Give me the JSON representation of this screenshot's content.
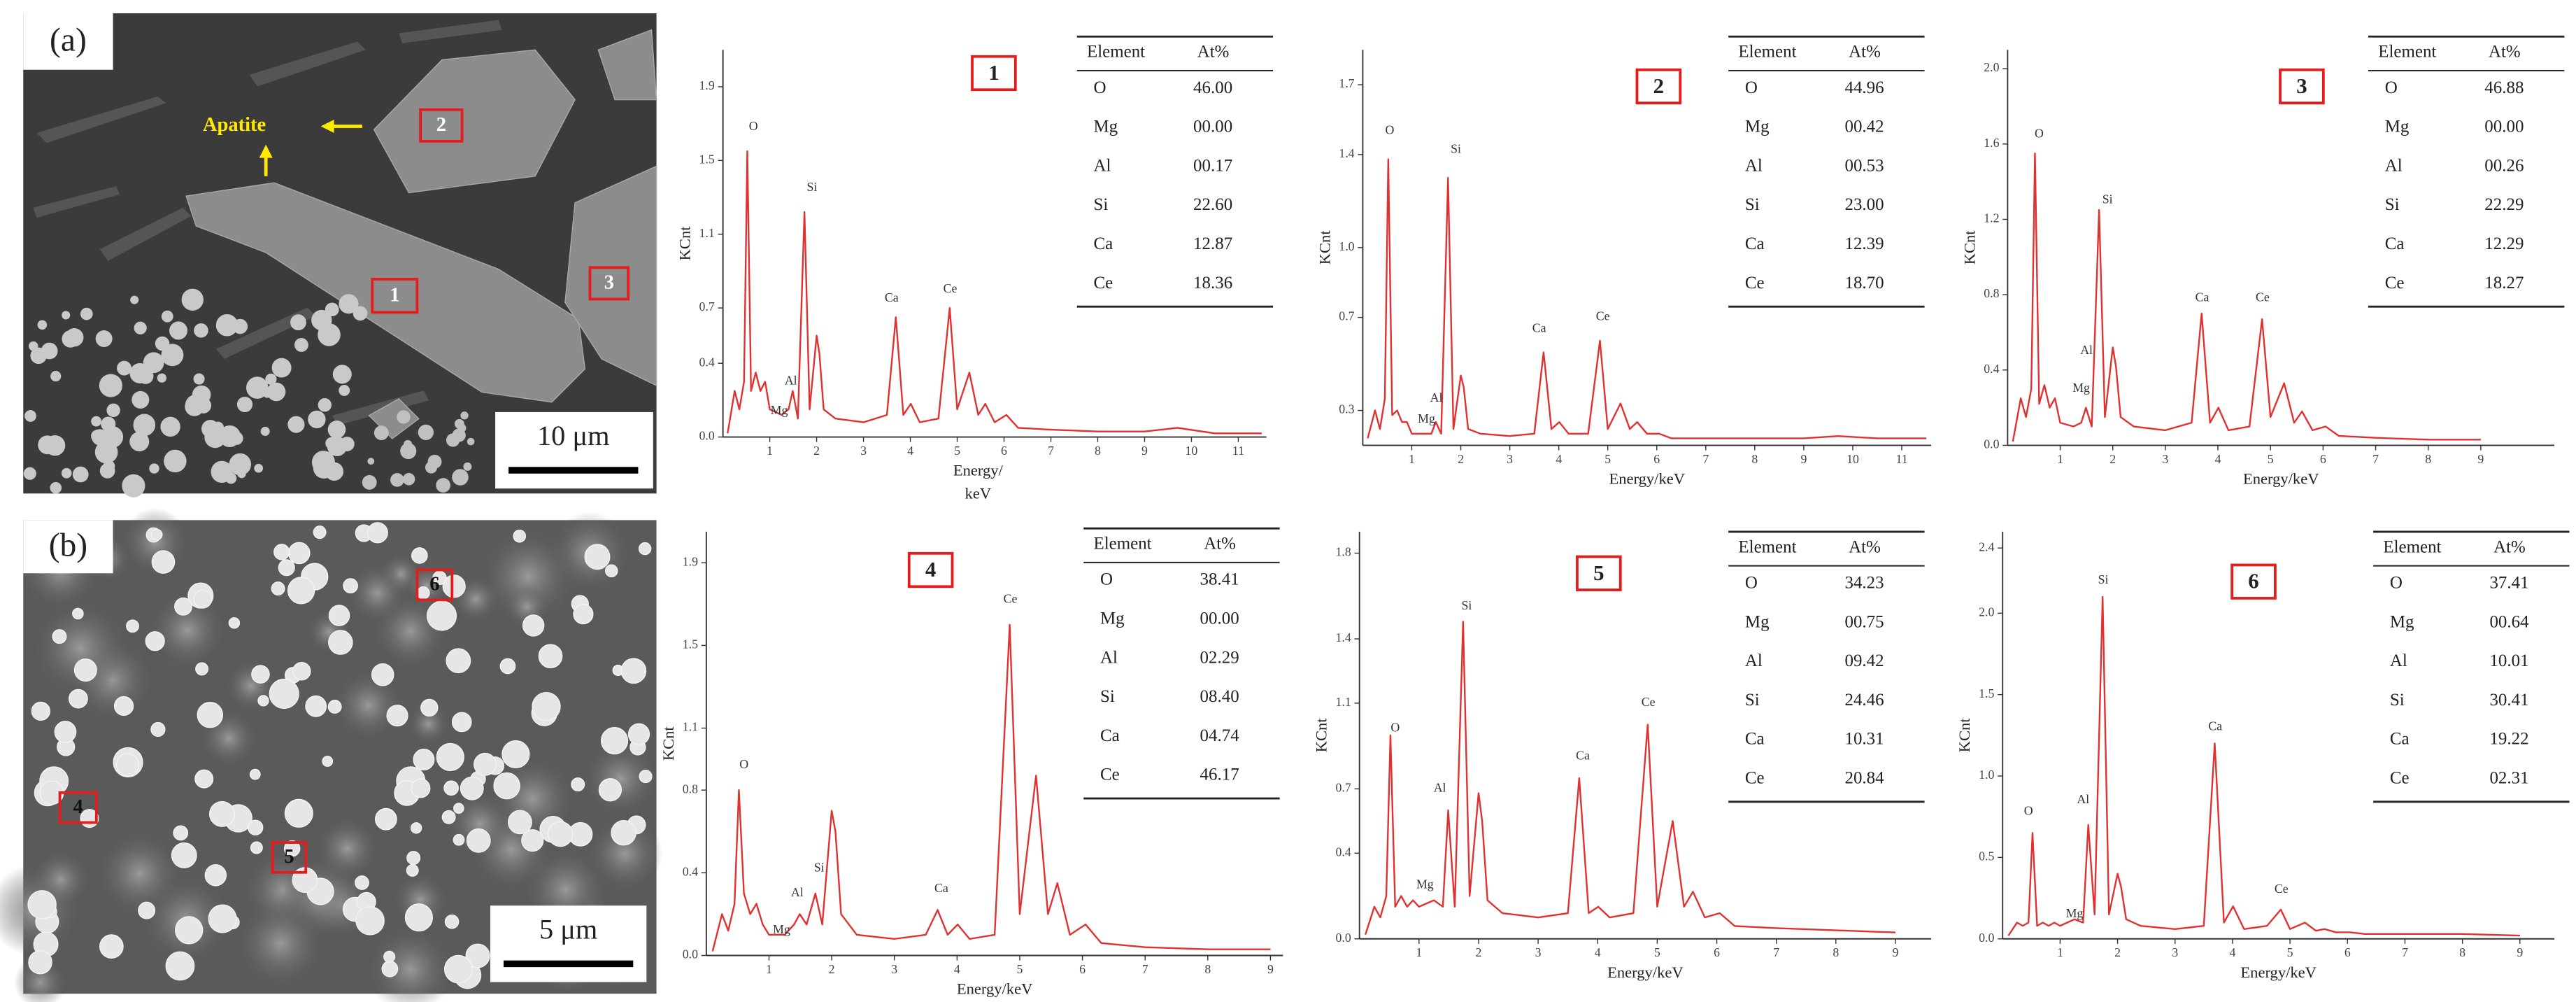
{
  "micrographs": [
    {
      "label": "(a)",
      "annotation": "Apatite",
      "scale_bar": "10 μm",
      "markers": [
        "1",
        "2",
        "3"
      ]
    },
    {
      "label": "(b)",
      "scale_bar": "5 μm",
      "markers": [
        "4",
        "5",
        "6"
      ]
    }
  ],
  "chart_data": [
    {
      "type": "line",
      "number": "1",
      "y_label": "KCnt",
      "x_label": "Energy/\nkeV",
      "color": "#e0302f",
      "xlim": [
        0,
        11.6
      ],
      "ylim": [
        0,
        2.1
      ],
      "xticks": [
        1,
        2,
        3,
        4,
        5,
        6,
        7,
        8,
        9,
        10,
        11
      ],
      "yticks": [
        {
          "value": 0,
          "label": "0.0"
        },
        0.4,
        0.7,
        1.1,
        1.5,
        1.9
      ],
      "x": [
        0.1,
        0.25,
        0.35,
        0.45,
        0.52,
        0.6,
        0.7,
        0.8,
        0.9,
        1.0,
        1.25,
        1.4,
        1.49,
        1.6,
        1.74,
        1.85,
        2.0,
        2.06,
        2.15,
        2.4,
        3.0,
        3.5,
        3.69,
        3.85,
        4.01,
        4.2,
        4.6,
        4.84,
        5.0,
        5.26,
        5.45,
        5.6,
        5.8,
        6.05,
        6.3,
        7,
        8,
        9,
        9.7,
        10.5,
        11.5
      ],
      "values": [
        0.02,
        0.25,
        0.15,
        0.3,
        1.55,
        0.25,
        0.35,
        0.25,
        0.3,
        0.15,
        0.12,
        0.15,
        0.25,
        0.1,
        1.22,
        0.15,
        0.55,
        0.45,
        0.15,
        0.1,
        0.08,
        0.12,
        0.65,
        0.12,
        0.18,
        0.08,
        0.1,
        0.7,
        0.15,
        0.35,
        0.12,
        0.18,
        0.08,
        0.12,
        0.05,
        0.04,
        0.03,
        0.03,
        0.05,
        0.02,
        0.02
      ],
      "annotations": [
        {
          "text": "O",
          "x": 0.65,
          "y": 1.68
        },
        {
          "text": "Si",
          "x": 1.9,
          "y": 1.35
        },
        {
          "text": "Al",
          "x": 1.45,
          "y": 0.3
        },
        {
          "text": "Mg",
          "x": 1.2,
          "y": 0.14
        },
        {
          "text": "Ca",
          "x": 3.6,
          "y": 0.75
        },
        {
          "text": "Ce",
          "x": 4.85,
          "y": 0.8
        }
      ],
      "table": {
        "header": [
          "Element",
          "At%"
        ],
        "rows": [
          [
            "O",
            "46.00"
          ],
          [
            "Mg",
            "00.00"
          ],
          [
            "Al",
            "00.17"
          ],
          [
            "Si",
            "22.60"
          ],
          [
            "Ca",
            "12.87"
          ],
          [
            "Ce",
            "18.36"
          ]
        ]
      }
    },
    {
      "type": "line",
      "number": "2",
      "y_label": "KCnt",
      "x_label": "Energy/keV",
      "color": "#e0302f",
      "xlim": [
        0,
        11.6
      ],
      "ylim": [
        0.15,
        1.85
      ],
      "xticks": [
        1,
        2,
        3,
        4,
        5,
        6,
        7,
        8,
        9,
        10,
        11
      ],
      "yticks": [
        0.3,
        0.7,
        {
          "value": 1,
          "label": "1.0"
        },
        1.4,
        1.7
      ],
      "x": [
        0.1,
        0.25,
        0.35,
        0.45,
        0.52,
        0.6,
        0.7,
        0.8,
        0.9,
        1.0,
        1.25,
        1.4,
        1.49,
        1.6,
        1.74,
        1.85,
        2.0,
        2.06,
        2.15,
        2.4,
        3.0,
        3.5,
        3.69,
        3.85,
        4.01,
        4.2,
        4.6,
        4.84,
        5.0,
        5.26,
        5.45,
        5.6,
        5.8,
        6.05,
        6.3,
        7,
        8,
        9,
        9.7,
        10.5,
        11.5
      ],
      "values": [
        0.18,
        0.3,
        0.22,
        0.35,
        1.38,
        0.28,
        0.3,
        0.25,
        0.25,
        0.2,
        0.2,
        0.2,
        0.25,
        0.2,
        1.3,
        0.22,
        0.45,
        0.4,
        0.22,
        0.2,
        0.19,
        0.2,
        0.55,
        0.22,
        0.25,
        0.2,
        0.2,
        0.6,
        0.22,
        0.33,
        0.22,
        0.25,
        0.2,
        0.2,
        0.18,
        0.18,
        0.18,
        0.18,
        0.19,
        0.18,
        0.18
      ],
      "annotations": [
        {
          "text": "O",
          "x": 0.55,
          "y": 1.5
        },
        {
          "text": "Si",
          "x": 1.9,
          "y": 1.42
        },
        {
          "text": "Al",
          "x": 1.5,
          "y": 0.35
        },
        {
          "text": "Mg",
          "x": 1.3,
          "y": 0.26
        },
        {
          "text": "Ca",
          "x": 3.6,
          "y": 0.65
        },
        {
          "text": "Ce",
          "x": 4.9,
          "y": 0.7
        }
      ],
      "table": {
        "header": [
          "Element",
          "At%"
        ],
        "rows": [
          [
            "O",
            "44.96"
          ],
          [
            "Mg",
            "00.42"
          ],
          [
            "Al",
            "00.53"
          ],
          [
            "Si",
            "23.00"
          ],
          [
            "Ca",
            "12.39"
          ],
          [
            "Ce",
            "18.70"
          ]
        ]
      }
    },
    {
      "type": "line",
      "number": "3",
      "y_label": "KCnt",
      "x_label": "Energy/keV",
      "color": "#e0302f",
      "xlim": [
        0,
        10.4
      ],
      "ylim": [
        0,
        2.1
      ],
      "xticks": [
        1,
        2,
        3,
        4,
        5,
        6,
        7,
        8,
        9
      ],
      "yticks": [
        {
          "value": 0,
          "label": "0.0"
        },
        0.4,
        0.8,
        1.2,
        1.6,
        {
          "value": 2,
          "label": "2.0"
        }
      ],
      "x": [
        0.1,
        0.25,
        0.35,
        0.45,
        0.52,
        0.6,
        0.7,
        0.8,
        0.9,
        1.0,
        1.25,
        1.4,
        1.49,
        1.6,
        1.74,
        1.85,
        2.0,
        2.06,
        2.15,
        2.4,
        3.0,
        3.5,
        3.69,
        3.85,
        4.01,
        4.2,
        4.6,
        4.84,
        5.0,
        5.26,
        5.45,
        5.6,
        5.8,
        6.05,
        6.3,
        7,
        8,
        9
      ],
      "values": [
        0.02,
        0.25,
        0.15,
        0.3,
        1.55,
        0.22,
        0.32,
        0.2,
        0.25,
        0.12,
        0.1,
        0.12,
        0.2,
        0.1,
        1.25,
        0.15,
        0.52,
        0.42,
        0.15,
        0.1,
        0.08,
        0.12,
        0.7,
        0.12,
        0.2,
        0.08,
        0.1,
        0.67,
        0.15,
        0.33,
        0.12,
        0.18,
        0.08,
        0.1,
        0.05,
        0.04,
        0.03,
        0.03
      ],
      "annotations": [
        {
          "text": "O",
          "x": 0.6,
          "y": 1.65
        },
        {
          "text": "Si",
          "x": 1.9,
          "y": 1.3
        },
        {
          "text": "Al",
          "x": 1.5,
          "y": 0.5
        },
        {
          "text": "Mg",
          "x": 1.4,
          "y": 0.3
        },
        {
          "text": "Ca",
          "x": 3.7,
          "y": 0.78
        },
        {
          "text": "Ce",
          "x": 4.85,
          "y": 0.78
        }
      ],
      "table": {
        "header": [
          "Element",
          "At%"
        ],
        "rows": [
          [
            "O",
            "46.88"
          ],
          [
            "Mg",
            "00.00"
          ],
          [
            "Al",
            "00.26"
          ],
          [
            "Si",
            "22.29"
          ],
          [
            "Ca",
            "12.29"
          ],
          [
            "Ce",
            "18.27"
          ]
        ]
      }
    },
    {
      "type": "line",
      "number": "4",
      "y_label": "KCnt",
      "x_label": "Energy/keV",
      "color": "#e0302f",
      "xlim": [
        0,
        9.2
      ],
      "ylim": [
        0,
        2.05
      ],
      "xticks": [
        1,
        2,
        3,
        4,
        5,
        6,
        7,
        8,
        9
      ],
      "yticks": [
        {
          "value": 0,
          "label": "0.0"
        },
        0.4,
        0.8,
        1.1,
        1.5,
        1.9
      ],
      "x": [
        0.1,
        0.25,
        0.35,
        0.45,
        0.52,
        0.6,
        0.7,
        0.8,
        0.9,
        1.0,
        1.25,
        1.4,
        1.49,
        1.6,
        1.74,
        1.85,
        2.0,
        2.06,
        2.15,
        2.4,
        3.0,
        3.5,
        3.69,
        3.85,
        4.01,
        4.2,
        4.6,
        4.84,
        5.0,
        5.26,
        5.45,
        5.6,
        5.8,
        6.05,
        6.3,
        7,
        8,
        9
      ],
      "values": [
        0.02,
        0.2,
        0.12,
        0.25,
        0.8,
        0.3,
        0.2,
        0.25,
        0.15,
        0.1,
        0.1,
        0.15,
        0.2,
        0.15,
        0.3,
        0.15,
        0.7,
        0.6,
        0.2,
        0.1,
        0.08,
        0.1,
        0.22,
        0.1,
        0.15,
        0.08,
        0.1,
        1.6,
        0.2,
        0.87,
        0.2,
        0.35,
        0.1,
        0.15,
        0.06,
        0.04,
        0.03,
        0.03
      ],
      "annotations": [
        {
          "text": "O",
          "x": 0.6,
          "y": 0.92
        },
        {
          "text": "Si",
          "x": 1.8,
          "y": 0.42
        },
        {
          "text": "Al",
          "x": 1.45,
          "y": 0.3
        },
        {
          "text": "Mg",
          "x": 1.2,
          "y": 0.12
        },
        {
          "text": "Ca",
          "x": 3.75,
          "y": 0.32
        },
        {
          "text": "Ce",
          "x": 4.85,
          "y": 1.72
        }
      ],
      "table": {
        "header": [
          "Element",
          "At%"
        ],
        "rows": [
          [
            "O",
            "38.41"
          ],
          [
            "Mg",
            "00.00"
          ],
          [
            "Al",
            "02.29"
          ],
          [
            "Si",
            "08.40"
          ],
          [
            "Ca",
            "04.74"
          ],
          [
            "Ce",
            "46.17"
          ]
        ]
      }
    },
    {
      "type": "line",
      "number": "5",
      "y_label": "KCnt",
      "x_label": "Energy/keV",
      "color": "#e0302f",
      "xlim": [
        0,
        9.6
      ],
      "ylim": [
        0,
        1.9
      ],
      "xticks": [
        1,
        2,
        3,
        4,
        5,
        6,
        7,
        8,
        9
      ],
      "yticks": [
        {
          "value": 0,
          "label": "0.0"
        },
        0.4,
        0.7,
        1.1,
        1.4,
        1.8
      ],
      "x": [
        0.1,
        0.25,
        0.35,
        0.45,
        0.52,
        0.6,
        0.7,
        0.8,
        0.9,
        1.0,
        1.25,
        1.4,
        1.49,
        1.6,
        1.74,
        1.85,
        2.0,
        2.06,
        2.15,
        2.4,
        3.0,
        3.5,
        3.69,
        3.85,
        4.01,
        4.2,
        4.6,
        4.84,
        5.0,
        5.26,
        5.45,
        5.6,
        5.8,
        6.05,
        6.3,
        7,
        8,
        9
      ],
      "values": [
        0.02,
        0.15,
        0.1,
        0.2,
        0.95,
        0.15,
        0.2,
        0.15,
        0.18,
        0.15,
        0.18,
        0.15,
        0.6,
        0.15,
        1.48,
        0.2,
        0.68,
        0.55,
        0.18,
        0.12,
        0.1,
        0.12,
        0.75,
        0.12,
        0.15,
        0.1,
        0.12,
        1.0,
        0.15,
        0.55,
        0.15,
        0.22,
        0.1,
        0.12,
        0.06,
        0.05,
        0.04,
        0.03
      ],
      "annotations": [
        {
          "text": "O",
          "x": 0.6,
          "y": 0.98
        },
        {
          "text": "Si",
          "x": 1.8,
          "y": 1.55
        },
        {
          "text": "Al",
          "x": 1.35,
          "y": 0.7
        },
        {
          "text": "Mg",
          "x": 1.1,
          "y": 0.25
        },
        {
          "text": "Ca",
          "x": 3.75,
          "y": 0.85
        },
        {
          "text": "Ce",
          "x": 4.85,
          "y": 1.1
        }
      ],
      "table": {
        "header": [
          "Element",
          "At%"
        ],
        "rows": [
          [
            "O",
            "34.23"
          ],
          [
            "Mg",
            "00.75"
          ],
          [
            "Al",
            "09.42"
          ],
          [
            "Si",
            "24.46"
          ],
          [
            "Ca",
            "10.31"
          ],
          [
            "Ce",
            "20.84"
          ]
        ]
      }
    },
    {
      "type": "line",
      "number": "6",
      "y_label": "KCnt",
      "x_label": "Energy/keV",
      "color": "#e0302f",
      "xlim": [
        0,
        9.6
      ],
      "ylim": [
        0,
        2.5
      ],
      "xticks": [
        1,
        2,
        3,
        4,
        5,
        6,
        7,
        8,
        9
      ],
      "yticks": [
        {
          "value": 0,
          "label": "0.0"
        },
        0.5,
        {
          "value": 1,
          "label": "1.0"
        },
        1.5,
        {
          "value": 2,
          "label": "2.0"
        },
        2.4
      ],
      "x": [
        0.1,
        0.25,
        0.35,
        0.45,
        0.52,
        0.6,
        0.7,
        0.8,
        0.9,
        1.0,
        1.25,
        1.4,
        1.49,
        1.6,
        1.74,
        1.85,
        2.0,
        2.06,
        2.15,
        2.4,
        3.0,
        3.5,
        3.69,
        3.85,
        4.01,
        4.2,
        4.6,
        4.84,
        5.0,
        5.26,
        5.45,
        5.6,
        5.8,
        6.05,
        6.3,
        7,
        8,
        9
      ],
      "values": [
        0.02,
        0.1,
        0.08,
        0.1,
        0.65,
        0.08,
        0.1,
        0.08,
        0.1,
        0.08,
        0.12,
        0.1,
        0.7,
        0.15,
        2.1,
        0.15,
        0.4,
        0.32,
        0.12,
        0.08,
        0.06,
        0.08,
        1.2,
        0.1,
        0.2,
        0.06,
        0.08,
        0.18,
        0.06,
        0.1,
        0.05,
        0.06,
        0.04,
        0.04,
        0.03,
        0.03,
        0.03,
        0.02
      ],
      "annotations": [
        {
          "text": "O",
          "x": 0.45,
          "y": 0.78
        },
        {
          "text": "Si",
          "x": 1.75,
          "y": 2.2
        },
        {
          "text": "Al",
          "x": 1.4,
          "y": 0.85
        },
        {
          "text": "Mg",
          "x": 1.25,
          "y": 0.15
        },
        {
          "text": "Ca",
          "x": 3.7,
          "y": 1.3
        },
        {
          "text": "Ce",
          "x": 4.85,
          "y": 0.3
        }
      ],
      "table": {
        "header": [
          "Element",
          "At%"
        ],
        "rows": [
          [
            "O",
            "37.41"
          ],
          [
            "Mg",
            "00.64"
          ],
          [
            "Al",
            "10.01"
          ],
          [
            "Si",
            "30.41"
          ],
          [
            "Ca",
            "19.22"
          ],
          [
            "Ce",
            "02.31"
          ]
        ]
      }
    }
  ]
}
